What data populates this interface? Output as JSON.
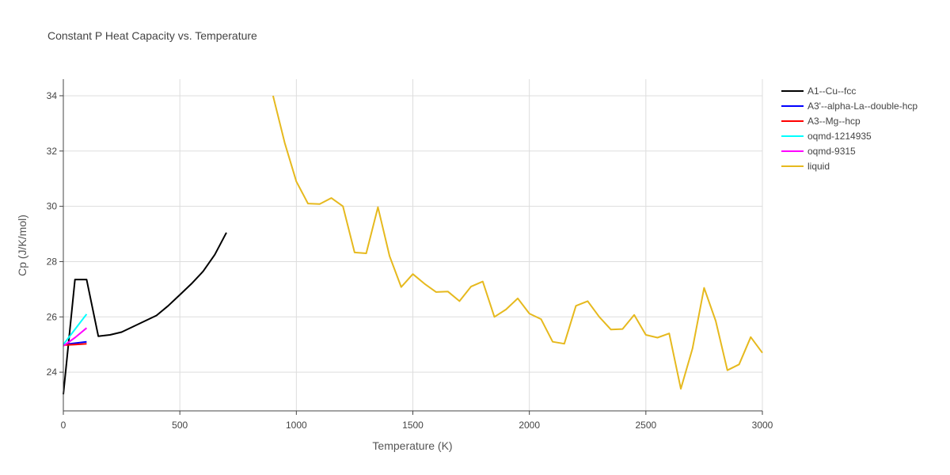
{
  "chart_data": {
    "type": "line",
    "title": "Constant P Heat Capacity vs. Temperature",
    "xlabel": "Temperature (K)",
    "ylabel": "Cp (J/K/mol)",
    "xlim": [
      0,
      3000
    ],
    "ylim": [
      22.6,
      34.6
    ],
    "xticks": [
      0,
      500,
      1000,
      1500,
      2000,
      2500,
      3000
    ],
    "yticks": [
      24,
      26,
      28,
      30,
      32,
      34
    ],
    "grid": true,
    "legend_position": "top-right",
    "series": [
      {
        "name": "A1--Cu--fcc",
        "color": "#000000",
        "x": [
          0,
          50,
          100,
          150,
          200,
          250,
          300,
          350,
          400,
          450,
          500,
          550,
          600,
          650,
          700
        ],
        "y": [
          23.2,
          27.35,
          27.35,
          25.3,
          25.35,
          25.45,
          25.65,
          25.85,
          26.05,
          26.4,
          26.8,
          27.2,
          27.65,
          28.25,
          29.05
        ]
      },
      {
        "name": "A3'--alpha-La--double-hcp",
        "color": "#0000ff",
        "x": [
          0,
          50,
          100
        ],
        "y": [
          25.0,
          25.05,
          25.1
        ]
      },
      {
        "name": "A3--Mg--hcp",
        "color": "#ff0000",
        "x": [
          0,
          50,
          100
        ],
        "y": [
          24.98,
          25.0,
          25.03
        ]
      },
      {
        "name": "oqmd-1214935",
        "color": "#00ffff",
        "x": [
          0,
          50,
          100
        ],
        "y": [
          25.0,
          25.55,
          26.1
        ]
      },
      {
        "name": "oqmd-9315",
        "color": "#ff00ff",
        "x": [
          0,
          50,
          100
        ],
        "y": [
          24.95,
          25.25,
          25.6
        ]
      },
      {
        "name": "liquid",
        "color": "#e6b91e",
        "x": [
          900,
          950,
          1000,
          1050,
          1100,
          1150,
          1200,
          1250,
          1300,
          1350,
          1400,
          1450,
          1500,
          1550,
          1600,
          1650,
          1700,
          1750,
          1800,
          1850,
          1900,
          1950,
          2000,
          2050,
          2100,
          2150,
          2200,
          2250,
          2300,
          2350,
          2400,
          2450,
          2500,
          2550,
          2600,
          2650,
          2700,
          2750,
          2800,
          2850,
          2900,
          2950,
          3000
        ],
        "y": [
          34.0,
          32.3,
          30.9,
          30.1,
          30.08,
          30.3,
          30.0,
          28.33,
          28.3,
          29.97,
          28.2,
          27.08,
          27.55,
          27.2,
          26.9,
          26.92,
          26.57,
          27.1,
          27.28,
          26.0,
          26.27,
          26.67,
          26.12,
          25.92,
          25.1,
          25.03,
          26.4,
          26.57,
          26.0,
          25.54,
          25.56,
          26.07,
          25.35,
          25.25,
          25.4,
          23.4,
          24.85,
          27.05,
          25.85,
          24.07,
          24.28,
          25.27,
          24.7
        ]
      }
    ]
  }
}
